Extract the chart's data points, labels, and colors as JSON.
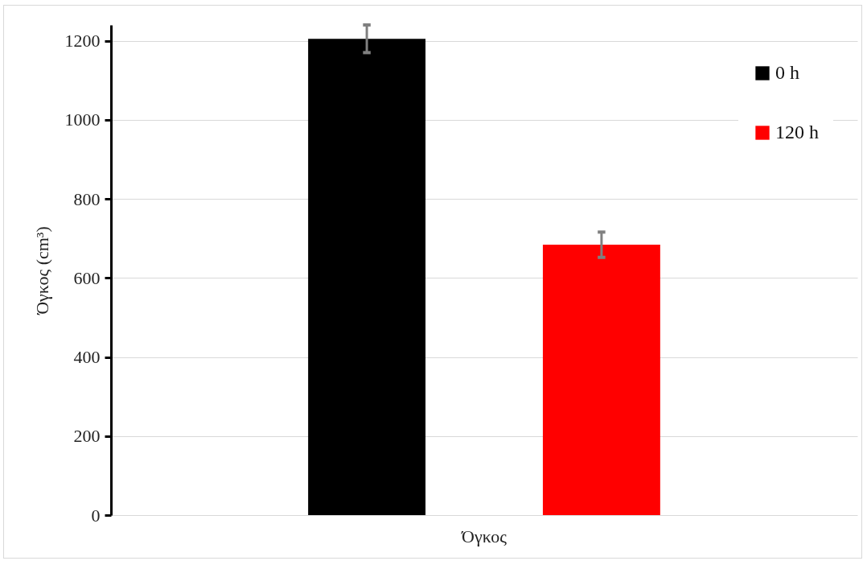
{
  "chart_data": {
    "type": "bar",
    "ylabel": "Όγκος (cm³)",
    "categories": [
      "Όγκος"
    ],
    "series": [
      {
        "name": "0 h",
        "color": "#000000",
        "values": [
          1205
        ],
        "errors": [
          35
        ]
      },
      {
        "name": "120 h",
        "color": "#ff0000",
        "values": [
          684
        ],
        "errors": [
          32
        ]
      }
    ],
    "ylim": [
      0,
      1240
    ],
    "yticks": [
      0,
      200,
      400,
      600,
      800,
      1000,
      1200
    ],
    "grid": "y",
    "legend": "top right"
  }
}
